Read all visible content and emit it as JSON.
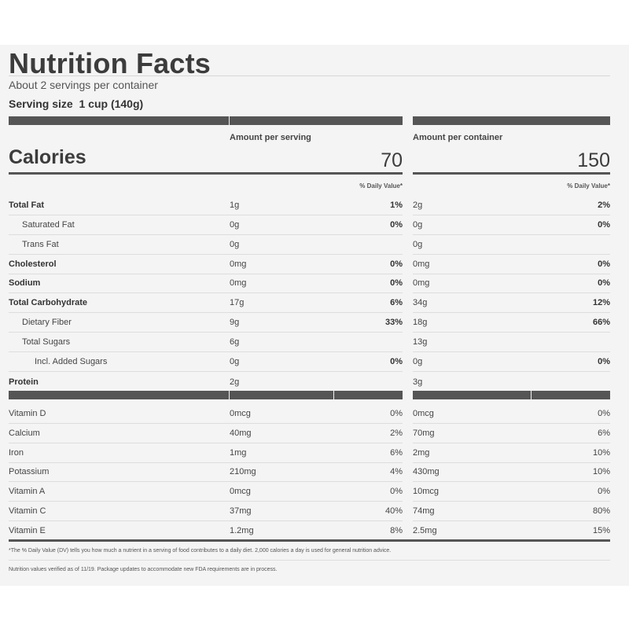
{
  "title": "Nutrition Facts",
  "servings_per_container": "About 2 servings per container",
  "serving_size": "Serving size  1 cup (140g)",
  "calories_label": "Calories",
  "amount_per_serving_header": "Amount per serving",
  "amount_per_container_header": "Amount per container",
  "calories_per_serving": "70",
  "calories_per_container": "150",
  "daily_value_header": "% Daily Value*",
  "nutrients": [
    {
      "name": "Total Fat",
      "bold": true,
      "indent": 0,
      "serving_amount": "1g",
      "serving_dv": "1%",
      "container_amount": "2g",
      "container_dv": "2%"
    },
    {
      "name": "Saturated Fat",
      "bold": false,
      "indent": 1,
      "serving_amount": "0g",
      "serving_dv": "0%",
      "container_amount": "0g",
      "container_dv": "0%"
    },
    {
      "name": "Trans Fat",
      "bold": false,
      "indent": 1,
      "serving_amount": "0g",
      "serving_dv": "",
      "container_amount": "0g",
      "container_dv": ""
    },
    {
      "name": "Cholesterol",
      "bold": true,
      "indent": 0,
      "serving_amount": "0mg",
      "serving_dv": "0%",
      "container_amount": "0mg",
      "container_dv": "0%"
    },
    {
      "name": "Sodium",
      "bold": true,
      "indent": 0,
      "serving_amount": "0mg",
      "serving_dv": "0%",
      "container_amount": "0mg",
      "container_dv": "0%"
    },
    {
      "name": "Total Carbohydrate",
      "bold": true,
      "indent": 0,
      "serving_amount": "17g",
      "serving_dv": "6%",
      "container_amount": "34g",
      "container_dv": "12%"
    },
    {
      "name": "Dietary Fiber",
      "bold": false,
      "indent": 1,
      "serving_amount": "9g",
      "serving_dv": "33%",
      "container_amount": "18g",
      "container_dv": "66%"
    },
    {
      "name": "Total Sugars",
      "bold": false,
      "indent": 1,
      "serving_amount": "6g",
      "serving_dv": "",
      "container_amount": "13g",
      "container_dv": ""
    },
    {
      "name": "Incl. Added Sugars",
      "bold": false,
      "indent": 2,
      "serving_amount": "0g",
      "serving_dv": "0%",
      "container_amount": "0g",
      "container_dv": "0%"
    },
    {
      "name": "Protein",
      "bold": true,
      "indent": 0,
      "serving_amount": "2g",
      "serving_dv": "",
      "container_amount": "3g",
      "container_dv": ""
    }
  ],
  "vitamins": [
    {
      "name": "Vitamin D",
      "serving_amount": "0mcg",
      "serving_dv": "0%",
      "container_amount": "0mcg",
      "container_dv": "0%"
    },
    {
      "name": "Calcium",
      "serving_amount": "40mg",
      "serving_dv": "2%",
      "container_amount": "70mg",
      "container_dv": "6%"
    },
    {
      "name": "Iron",
      "serving_amount": "1mg",
      "serving_dv": "6%",
      "container_amount": "2mg",
      "container_dv": "10%"
    },
    {
      "name": "Potassium",
      "serving_amount": "210mg",
      "serving_dv": "4%",
      "container_amount": "430mg",
      "container_dv": "10%"
    },
    {
      "name": "Vitamin A",
      "serving_amount": "0mcg",
      "serving_dv": "0%",
      "container_amount": "10mcg",
      "container_dv": "0%"
    },
    {
      "name": "Vitamin C",
      "serving_amount": "37mg",
      "serving_dv": "40%",
      "container_amount": "74mg",
      "container_dv": "80%"
    },
    {
      "name": "Vitamin E",
      "serving_amount": "1.2mg",
      "serving_dv": "8%",
      "container_amount": "2.5mg",
      "container_dv": "15%"
    }
  ],
  "footnote": "*The % Daily Value (DV) tells you how much a nutrient in a serving of food contributes to a daily diet. 2,000 calories a day is used for general nutrition advice.",
  "verification_note": "Nutrition values verified as of 11/19. Package updates to accommodate new FDA requirements are in process."
}
